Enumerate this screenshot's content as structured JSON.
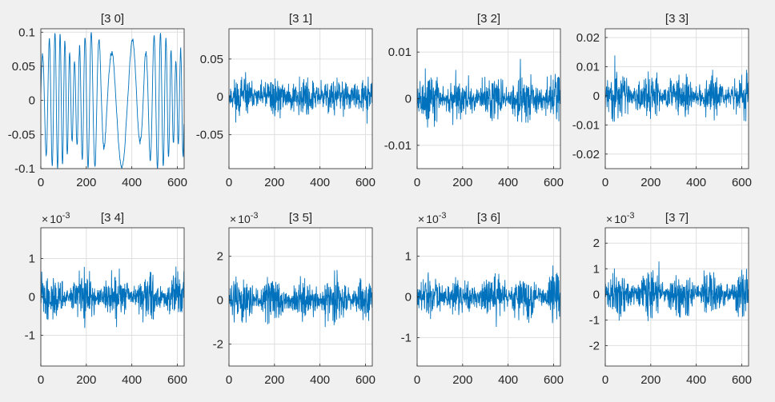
{
  "chart_data": [
    {
      "type": "line",
      "title": "[3 0]",
      "xlim": [
        0,
        630
      ],
      "ylim": [
        -0.1,
        0.105
      ],
      "xticks": [
        0,
        200,
        400,
        600
      ],
      "xtick_labels": [
        "0",
        "200",
        "400",
        "600"
      ],
      "yticks": [
        -0.1,
        -0.05,
        0,
        0.05,
        0.1
      ],
      "ytick_labels": [
        "-0.1",
        "-0.05",
        "0",
        "0.05",
        "0.1"
      ],
      "exponent": "",
      "grid": true,
      "signal": {
        "n": 630,
        "kind": "smooth",
        "amp": 0.1,
        "seed": 3
      }
    },
    {
      "type": "line",
      "title": "[3 1]",
      "xlim": [
        0,
        630
      ],
      "ylim": [
        -0.095,
        0.09
      ],
      "xticks": [
        0,
        200,
        400,
        600
      ],
      "xtick_labels": [
        "0",
        "200",
        "400",
        "600"
      ],
      "yticks": [
        -0.05,
        0,
        0.05
      ],
      "ytick_labels": [
        "-0.05",
        "0",
        "0.05"
      ],
      "exponent": "",
      "grid": true,
      "signal": {
        "n": 630,
        "kind": "burst",
        "amp": 0.075,
        "seed": 11
      }
    },
    {
      "type": "line",
      "title": "[3 2]",
      "xlim": [
        0,
        630
      ],
      "ylim": [
        -0.015,
        0.015
      ],
      "xticks": [
        0,
        200,
        400,
        600
      ],
      "xtick_labels": [
        "0",
        "200",
        "400",
        "600"
      ],
      "yticks": [
        -0.01,
        0,
        0.01
      ],
      "ytick_labels": [
        "-0.01",
        "0",
        "0.01"
      ],
      "exponent": "",
      "grid": true,
      "signal": {
        "n": 630,
        "kind": "noise",
        "amp": 0.015,
        "seed": 21
      }
    },
    {
      "type": "line",
      "title": "[3 3]",
      "xlim": [
        0,
        630
      ],
      "ylim": [
        -0.025,
        0.023
      ],
      "xticks": [
        0,
        200,
        400,
        600
      ],
      "xtick_labels": [
        "0",
        "200",
        "400",
        "600"
      ],
      "yticks": [
        -0.02,
        -0.01,
        0,
        0.01,
        0.02
      ],
      "ytick_labels": [
        "-0.02",
        "-0.01",
        "0",
        "0.01",
        "0.02"
      ],
      "exponent": "",
      "grid": true,
      "signal": {
        "n": 630,
        "kind": "noise",
        "amp": 0.022,
        "seed": 31
      }
    },
    {
      "type": "line",
      "title": "[3 4]",
      "xlim": [
        0,
        630
      ],
      "ylim": [
        -1.8,
        1.8
      ],
      "xticks": [
        0,
        200,
        400,
        600
      ],
      "xtick_labels": [
        "0",
        "200",
        "400",
        "600"
      ],
      "yticks": [
        -1,
        0,
        1
      ],
      "ytick_labels": [
        "-1",
        "0",
        "1"
      ],
      "exponent": "10",
      "grid": true,
      "signal": {
        "n": 630,
        "kind": "noise",
        "amp": 1.7,
        "seed": 41
      }
    },
    {
      "type": "line",
      "title": "[3 5]",
      "xlim": [
        0,
        630
      ],
      "ylim": [
        -3,
        3.3
      ],
      "xticks": [
        0,
        200,
        400,
        600
      ],
      "xtick_labels": [
        "0",
        "200",
        "400",
        "600"
      ],
      "yticks": [
        -2,
        0,
        2
      ],
      "ytick_labels": [
        "-2",
        "0",
        "2"
      ],
      "exponent": "10",
      "grid": true,
      "signal": {
        "n": 630,
        "kind": "noise",
        "amp": 3.0,
        "seed": 51
      }
    },
    {
      "type": "line",
      "title": "[3 6]",
      "xlim": [
        0,
        630
      ],
      "ylim": [
        -1.7,
        1.7
      ],
      "xticks": [
        0,
        200,
        400,
        600
      ],
      "xtick_labels": [
        "0",
        "200",
        "400",
        "600"
      ],
      "yticks": [
        -1,
        0,
        1
      ],
      "ytick_labels": [
        "-1",
        "0",
        "1"
      ],
      "exponent": "10",
      "grid": true,
      "signal": {
        "n": 630,
        "kind": "noise",
        "amp": 1.6,
        "seed": 61
      }
    },
    {
      "type": "line",
      "title": "[3 7]",
      "xlim": [
        0,
        630
      ],
      "ylim": [
        -2.8,
        2.6
      ],
      "xticks": [
        0,
        200,
        400,
        600
      ],
      "xtick_labels": [
        "0",
        "200",
        "400",
        "600"
      ],
      "yticks": [
        -2,
        -1,
        0,
        1,
        2
      ],
      "ytick_labels": [
        "-2",
        "-1",
        "0",
        "1",
        "2"
      ],
      "exponent": "10",
      "grid": true,
      "signal": {
        "n": 630,
        "kind": "noise",
        "amp": 2.5,
        "seed": 71
      }
    }
  ],
  "style": {
    "line_color": "#0072bd",
    "grid_color": "#dfdfdf",
    "axes_color": "#262626",
    "axes_background": "#ffffff",
    "figure_background": "#f0f0f0",
    "exponent_superscript": "-3"
  }
}
